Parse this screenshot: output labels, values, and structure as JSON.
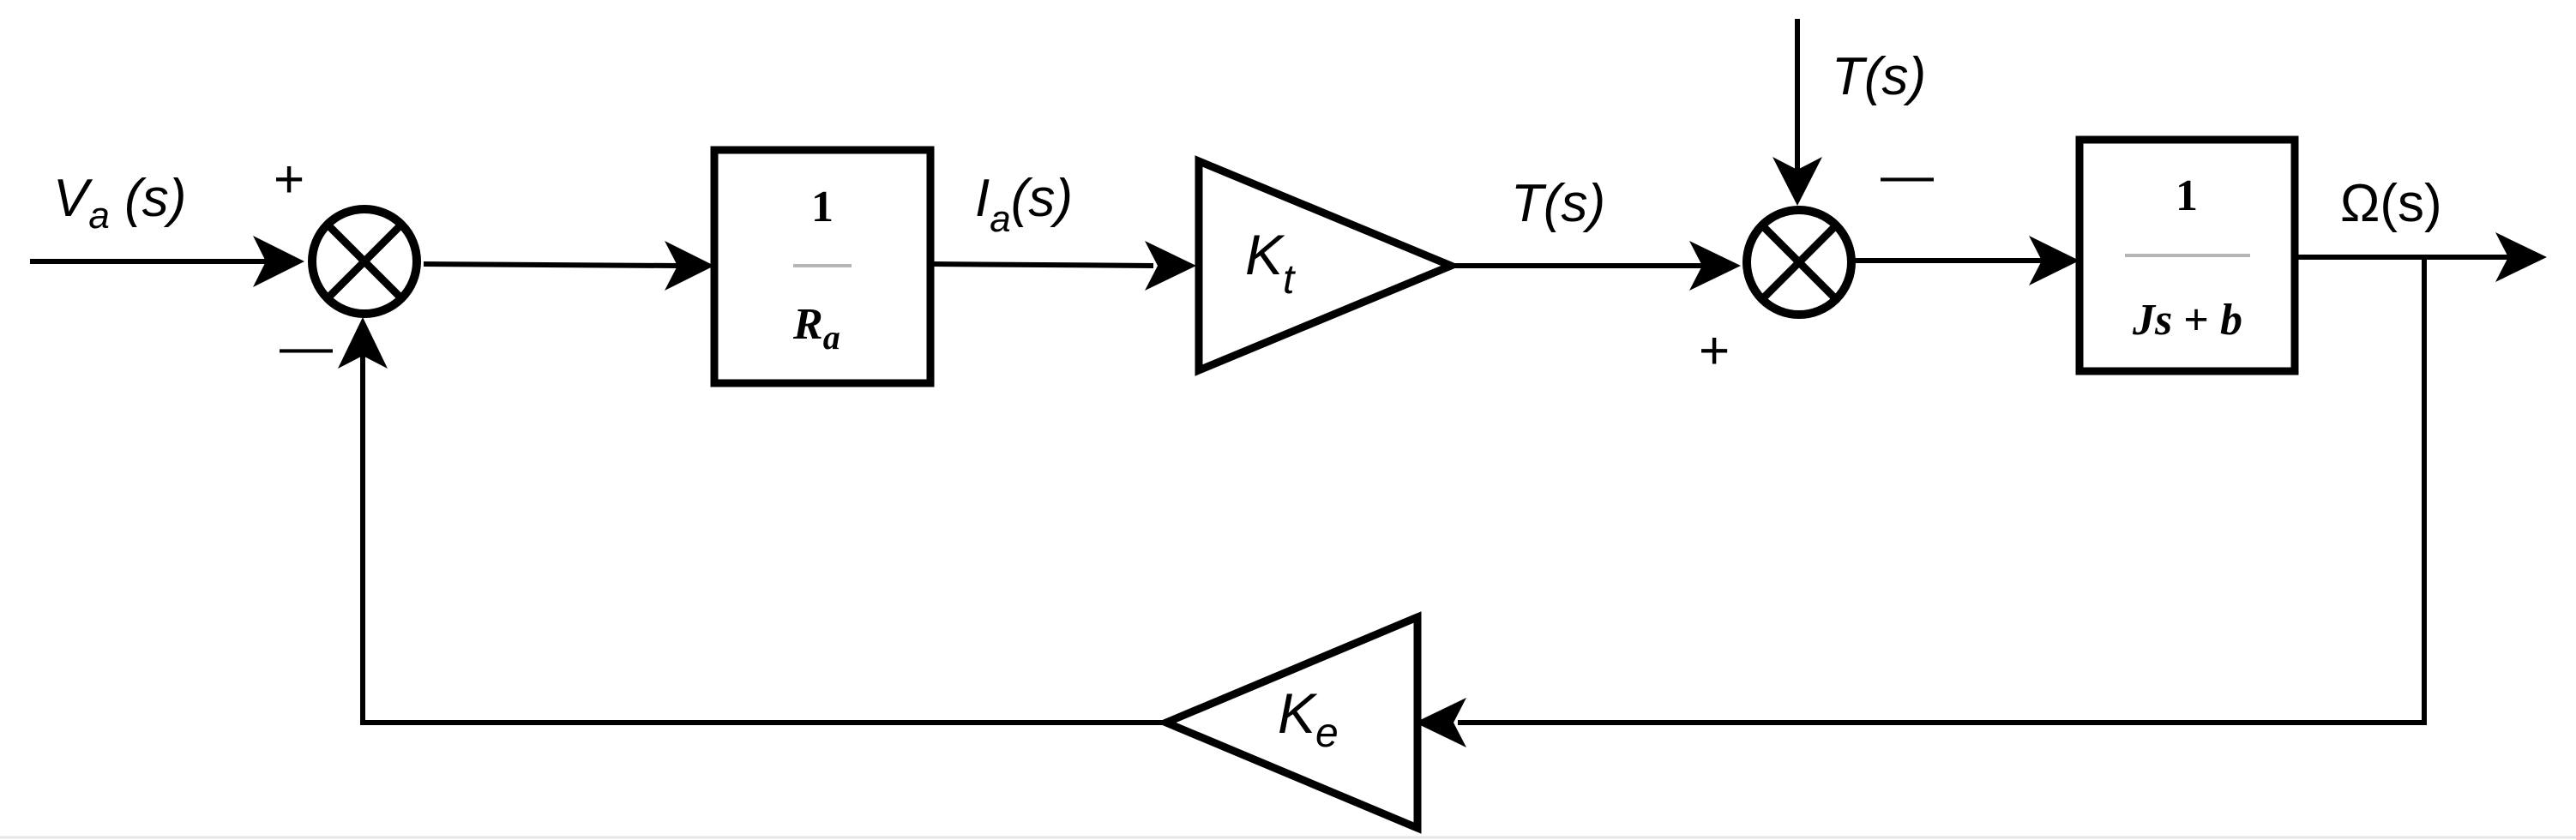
{
  "signals": {
    "input": {
      "main": "V",
      "sub": "a",
      "tail": " (s)"
    },
    "current": {
      "main": "I",
      "sub": "a",
      "tail": "(s)"
    },
    "torque": "T(s)",
    "disturbance": "T(s)",
    "output": "Ω(s)"
  },
  "blocks": {
    "resistance": {
      "numerator": "1",
      "denominator_main": "R",
      "denominator_sub": "a"
    },
    "mechanical": {
      "numerator": "1",
      "den_js": "Js",
      "den_plus": " + ",
      "den_b": "b"
    },
    "torque_gain": {
      "main": "K",
      "sub": "t"
    },
    "emf_gain": {
      "main": "K",
      "sub": "e"
    }
  },
  "summing_junctions": {
    "first": {
      "plus": "+",
      "minus": "—"
    },
    "second": {
      "plus": "+",
      "minus": "—"
    }
  }
}
